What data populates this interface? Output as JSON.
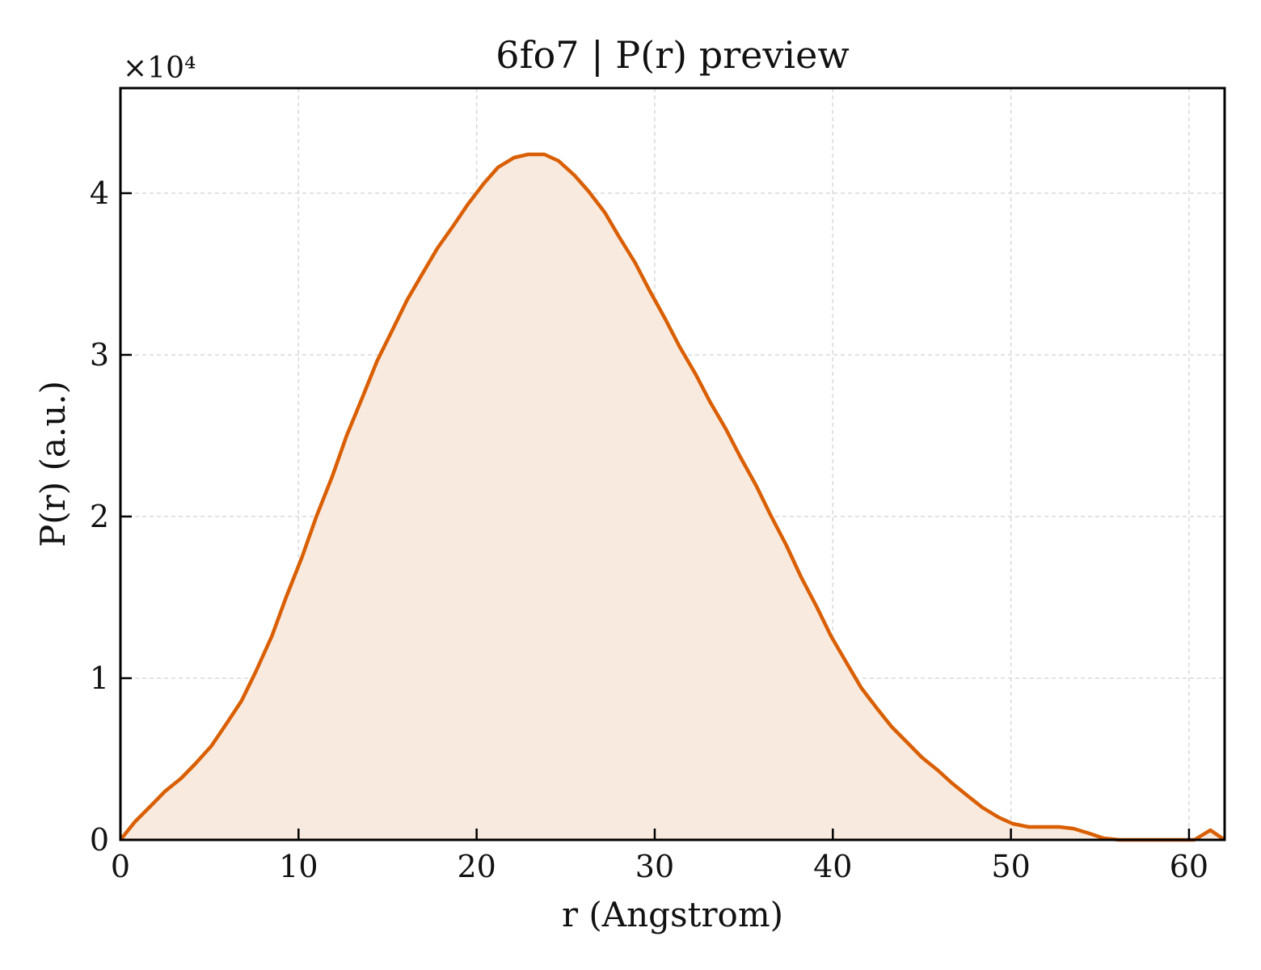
{
  "chart_data": {
    "type": "area",
    "title": "6fo7 | P(r) preview",
    "xlabel": "r (Angstrom)",
    "ylabel": "P(r) (a.u.)",
    "y_multiplier_label": "×10⁴",
    "xlim": [
      0,
      62
    ],
    "ylim": [
      0,
      4.65
    ],
    "x_ticks": [
      0,
      10,
      20,
      30,
      40,
      50,
      60
    ],
    "x_tick_labels": [
      "0",
      "10",
      "20",
      "30",
      "40",
      "50",
      "60"
    ],
    "y_ticks": [
      0,
      1,
      2,
      3,
      4
    ],
    "y_tick_labels": [
      "0",
      "1",
      "2",
      "3",
      "4"
    ],
    "grid": true,
    "legend": "none",
    "colors": {
      "line": "#d95f02",
      "fill": "#f9eadf",
      "grid": "#d9d9d9",
      "axes": "#000000"
    },
    "series": [
      {
        "x": [
          0,
          0.8,
          1.7,
          2.5,
          3.4,
          4.2,
          5.1,
          5.9,
          6.8,
          7.6,
          8.5,
          9.3,
          10.2,
          11.0,
          11.9,
          12.7,
          13.6,
          14.4,
          15.3,
          16.1,
          17.0,
          17.8,
          18.7,
          19.5,
          20.4,
          21.2,
          22.1,
          22.9,
          23.8,
          24.6,
          25.5,
          26.3,
          27.2,
          28.0,
          28.9,
          29.7,
          30.6,
          31.4,
          32.3,
          33.1,
          34.0,
          34.8,
          35.7,
          36.5,
          37.4,
          38.2,
          39.1,
          39.9,
          40.8,
          41.6,
          42.5,
          43.3,
          44.2,
          45.0,
          45.9,
          46.7,
          47.6,
          48.4,
          49.3,
          50.1,
          51.0,
          51.8,
          52.7,
          53.5,
          54.4,
          55.2,
          56.1,
          56.9,
          57.8,
          58.6,
          59.5,
          60.3,
          61.2,
          62.0
        ],
        "values": [
          0,
          0.11,
          0.21,
          0.3,
          0.38,
          0.47,
          0.58,
          0.71,
          0.86,
          1.04,
          1.26,
          1.5,
          1.75,
          2.0,
          2.25,
          2.5,
          2.74,
          2.96,
          3.16,
          3.34,
          3.51,
          3.66,
          3.8,
          3.93,
          4.06,
          4.16,
          4.22,
          4.24,
          4.24,
          4.2,
          4.11,
          4.01,
          3.88,
          3.73,
          3.57,
          3.4,
          3.22,
          3.05,
          2.88,
          2.71,
          2.54,
          2.37,
          2.19,
          2.01,
          1.82,
          1.63,
          1.44,
          1.26,
          1.09,
          0.94,
          0.81,
          0.7,
          0.6,
          0.51,
          0.43,
          0.35,
          0.27,
          0.2,
          0.14,
          0.1,
          0.08,
          0.08,
          0.08,
          0.07,
          0.04,
          0.01,
          0.0,
          0.0,
          0.0,
          0.0,
          0.0,
          0.0,
          0.06,
          0.0
        ]
      }
    ]
  }
}
